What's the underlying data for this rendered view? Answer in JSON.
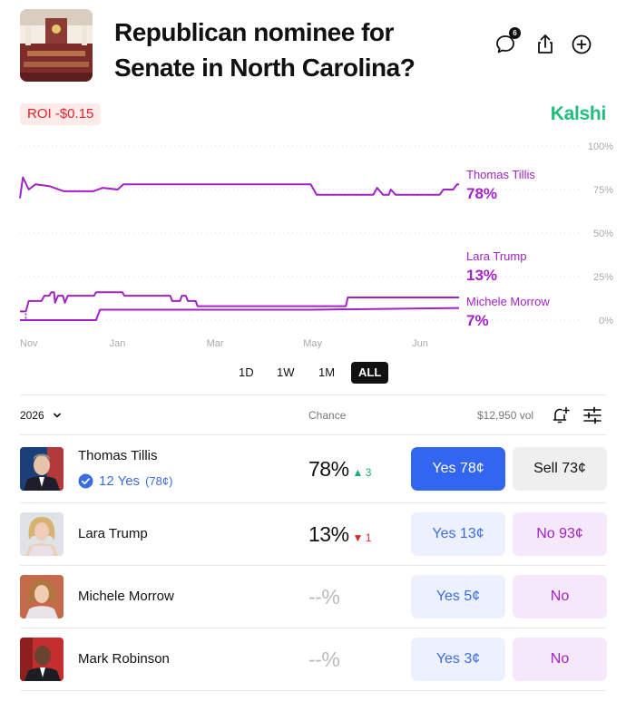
{
  "market": {
    "title": "Republican nominee for Senate in North Carolina?",
    "comments_count": "6",
    "brand": "Kalshi",
    "brand_color": "#1dbf7c",
    "accent_color": "#a322c7"
  },
  "roi": {
    "label": "ROI",
    "value": "-$0.15"
  },
  "chart_data": {
    "type": "line",
    "x_ticks": [
      "Nov",
      "Jan",
      "Mar",
      "May",
      "Jun"
    ],
    "y_ticks": [
      "100%",
      "75%",
      "50%",
      "25%",
      "0%"
    ],
    "ylim": [
      0,
      100
    ],
    "grid": true,
    "series": [
      {
        "name": "Thomas Tillis",
        "value_label": "78%",
        "color": "#a322c7",
        "points": [
          [
            0,
            70
          ],
          [
            0.3,
            82
          ],
          [
            0.9,
            75
          ],
          [
            1.6,
            78
          ],
          [
            3,
            77
          ],
          [
            4.5,
            74
          ],
          [
            7.5,
            74
          ],
          [
            8.5,
            76
          ],
          [
            10,
            75
          ],
          [
            10.6,
            78
          ],
          [
            12,
            78
          ],
          [
            20,
            78
          ],
          [
            26,
            78
          ],
          [
            29.8,
            78
          ],
          [
            30.4,
            72
          ],
          [
            35,
            72
          ],
          [
            36.2,
            72
          ],
          [
            36.6,
            76
          ],
          [
            37.2,
            72
          ],
          [
            37.8,
            72
          ],
          [
            38,
            75
          ],
          [
            38.5,
            72
          ],
          [
            43,
            72
          ],
          [
            43.4,
            75
          ],
          [
            44.4,
            75
          ],
          [
            44.8,
            78
          ],
          [
            45,
            78
          ]
        ]
      },
      {
        "name": "Lara Trump",
        "value_label": "13%",
        "color": "#a322c7",
        "points": [
          [
            0,
            5
          ],
          [
            0.6,
            5
          ],
          [
            0.9,
            11
          ],
          [
            2.2,
            11
          ],
          [
            2.5,
            14
          ],
          [
            3,
            14
          ],
          [
            3.2,
            16
          ],
          [
            3.5,
            16
          ],
          [
            3.6,
            10
          ],
          [
            3.9,
            14
          ],
          [
            4.4,
            14
          ],
          [
            4.6,
            10
          ],
          [
            4.9,
            14
          ],
          [
            7.6,
            14
          ],
          [
            7.8,
            16
          ],
          [
            10.5,
            16
          ],
          [
            10.7,
            14
          ],
          [
            15.4,
            14
          ],
          [
            15.6,
            11
          ],
          [
            16.4,
            11
          ],
          [
            16.6,
            14
          ],
          [
            17,
            14
          ],
          [
            17.2,
            11
          ],
          [
            18,
            11
          ],
          [
            18.2,
            8
          ],
          [
            33.4,
            8
          ],
          [
            33.6,
            13
          ],
          [
            45,
            13
          ]
        ]
      },
      {
        "name": "Michele Morrow",
        "value_label": "7%",
        "color": "#a322c7",
        "points": [
          [
            0,
            0
          ],
          [
            7.8,
            0
          ],
          [
            8,
            3
          ],
          [
            8.2,
            6
          ],
          [
            30,
            6
          ],
          [
            45,
            7
          ]
        ]
      }
    ]
  },
  "time_ranges": [
    "1D",
    "1W",
    "1M",
    "ALL"
  ],
  "time_range_active": "ALL",
  "table": {
    "year_filter": "2026",
    "chance_header": "Chance",
    "volume": "$12,950 vol",
    "rows": [
      {
        "name": "Thomas Tillis",
        "position": "12 Yes",
        "position_avg": "(78¢)",
        "chance": "78%",
        "delta": "3",
        "delta_dir": "up",
        "yes_label": "Yes 78¢",
        "other_label": "Sell 73¢"
      },
      {
        "name": "Lara Trump",
        "chance": "13%",
        "delta": "1",
        "delta_dir": "down",
        "yes_label": "Yes 13¢",
        "other_label": "No 93¢"
      },
      {
        "name": "Michele Morrow",
        "chance": "--%",
        "yes_label": "Yes 5¢",
        "other_label": "No"
      },
      {
        "name": "Mark Robinson",
        "chance": "--%",
        "yes_label": "Yes 3¢",
        "other_label": "No"
      }
    ]
  }
}
